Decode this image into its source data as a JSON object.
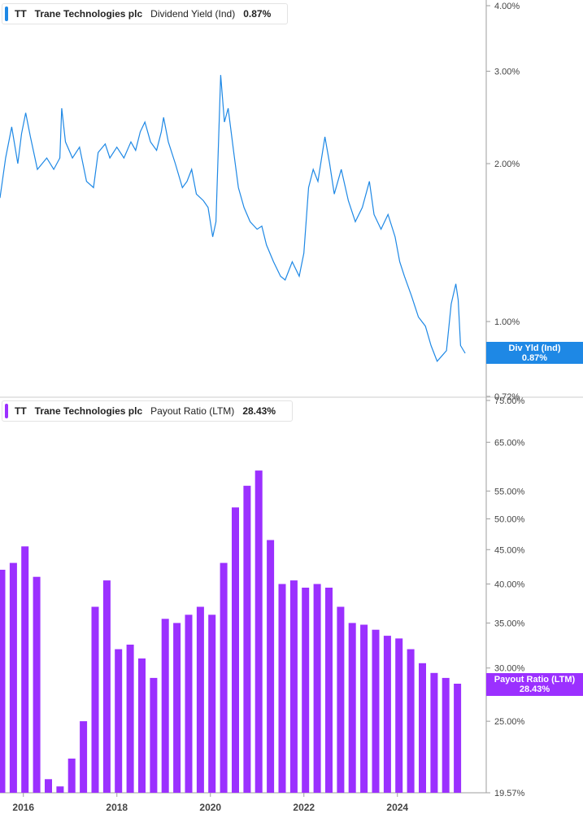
{
  "colors": {
    "yield": "#1e88e5",
    "payout": "#9b30ff",
    "axis": "#9e9e9e",
    "grid_text": "#444444"
  },
  "top_legend": {
    "ticker": "TT",
    "company": "Trane Technologies plc",
    "metric": "Dividend Yield (Ind)",
    "value": "0.87%"
  },
  "bottom_legend": {
    "ticker": "TT",
    "company": "Payout Ratio (LTM)",
    "company_name": "Trane Technologies plc",
    "value": "28.43%"
  },
  "top_tag": {
    "label": "Div Yld (Ind)",
    "value": "0.87%"
  },
  "bottom_tag": {
    "label": "Payout Ratio (LTM)",
    "value": "28.43%"
  },
  "chart_data": [
    {
      "type": "line",
      "series": [
        {
          "name": "Dividend Yield (Ind)",
          "points": [
            [
              2015.5,
              1.72
            ],
            [
              2015.62,
              2.05
            ],
            [
              2015.75,
              2.35
            ],
            [
              2015.88,
              2.0
            ],
            [
              2015.96,
              2.28
            ],
            [
              2016.05,
              2.5
            ],
            [
              2016.15,
              2.25
            ],
            [
              2016.3,
              1.95
            ],
            [
              2016.5,
              2.05
            ],
            [
              2016.65,
              1.95
            ],
            [
              2016.78,
              2.05
            ],
            [
              2016.82,
              2.55
            ],
            [
              2016.9,
              2.2
            ],
            [
              2017.05,
              2.05
            ],
            [
              2017.2,
              2.15
            ],
            [
              2017.35,
              1.85
            ],
            [
              2017.5,
              1.8
            ],
            [
              2017.6,
              2.1
            ],
            [
              2017.75,
              2.18
            ],
            [
              2017.85,
              2.05
            ],
            [
              2018.0,
              2.15
            ],
            [
              2018.15,
              2.05
            ],
            [
              2018.3,
              2.2
            ],
            [
              2018.4,
              2.12
            ],
            [
              2018.5,
              2.3
            ],
            [
              2018.6,
              2.4
            ],
            [
              2018.72,
              2.2
            ],
            [
              2018.85,
              2.12
            ],
            [
              2018.95,
              2.3
            ],
            [
              2019.0,
              2.45
            ],
            [
              2019.1,
              2.2
            ],
            [
              2019.25,
              2.0
            ],
            [
              2019.4,
              1.8
            ],
            [
              2019.5,
              1.85
            ],
            [
              2019.6,
              1.95
            ],
            [
              2019.7,
              1.75
            ],
            [
              2019.85,
              1.7
            ],
            [
              2019.95,
              1.65
            ],
            [
              2020.05,
              1.45
            ],
            [
              2020.12,
              1.55
            ],
            [
              2020.22,
              2.95
            ],
            [
              2020.3,
              2.4
            ],
            [
              2020.38,
              2.55
            ],
            [
              2020.5,
              2.1
            ],
            [
              2020.6,
              1.8
            ],
            [
              2020.72,
              1.65
            ],
            [
              2020.85,
              1.55
            ],
            [
              2021.0,
              1.5
            ],
            [
              2021.1,
              1.52
            ],
            [
              2021.2,
              1.4
            ],
            [
              2021.35,
              1.3
            ],
            [
              2021.5,
              1.22
            ],
            [
              2021.6,
              1.2
            ],
            [
              2021.75,
              1.3
            ],
            [
              2021.9,
              1.22
            ],
            [
              2022.0,
              1.35
            ],
            [
              2022.1,
              1.8
            ],
            [
              2022.2,
              1.95
            ],
            [
              2022.3,
              1.85
            ],
            [
              2022.45,
              2.25
            ],
            [
              2022.55,
              2.0
            ],
            [
              2022.65,
              1.75
            ],
            [
              2022.8,
              1.95
            ],
            [
              2022.95,
              1.7
            ],
            [
              2023.1,
              1.55
            ],
            [
              2023.25,
              1.65
            ],
            [
              2023.4,
              1.85
            ],
            [
              2023.5,
              1.6
            ],
            [
              2023.65,
              1.5
            ],
            [
              2023.8,
              1.6
            ],
            [
              2023.95,
              1.45
            ],
            [
              2024.05,
              1.3
            ],
            [
              2024.15,
              1.22
            ],
            [
              2024.3,
              1.12
            ],
            [
              2024.45,
              1.02
            ],
            [
              2024.6,
              0.98
            ],
            [
              2024.72,
              0.9
            ],
            [
              2024.85,
              0.84
            ],
            [
              2024.95,
              0.86
            ],
            [
              2025.05,
              0.88
            ],
            [
              2025.15,
              1.08
            ],
            [
              2025.25,
              1.18
            ],
            [
              2025.3,
              1.1
            ],
            [
              2025.35,
              0.9
            ],
            [
              2025.45,
              0.87
            ]
          ]
        }
      ],
      "y_scale": "log",
      "ylim": [
        0.72,
        4.0
      ],
      "ytick_labels": [
        {
          "value": 4.0,
          "label": "4.00%"
        },
        {
          "value": 3.0,
          "label": "3.00%"
        },
        {
          "value": 2.0,
          "label": "2.00%"
        },
        {
          "value": 1.0,
          "label": "1.00%"
        },
        {
          "value": 0.87,
          "label": "0.87%"
        },
        {
          "value": 0.72,
          "label": "0.72%"
        }
      ],
      "xlim": [
        2015.5,
        2025.9
      ]
    },
    {
      "type": "bar",
      "series": [
        {
          "name": "Payout Ratio (LTM)",
          "points": [
            [
              2015.5,
              42.0
            ],
            [
              2015.75,
              43.0
            ],
            [
              2016.0,
              45.5
            ],
            [
              2016.25,
              41.0
            ],
            [
              2016.5,
              20.5
            ],
            [
              2016.75,
              20.0
            ],
            [
              2017.0,
              22.0
            ],
            [
              2017.25,
              25.0
            ],
            [
              2017.5,
              37.0
            ],
            [
              2017.75,
              40.5
            ],
            [
              2018.0,
              32.0
            ],
            [
              2018.25,
              32.5
            ],
            [
              2018.5,
              31.0
            ],
            [
              2018.75,
              29.0
            ],
            [
              2019.0,
              35.5
            ],
            [
              2019.25,
              35.0
            ],
            [
              2019.5,
              36.0
            ],
            [
              2019.75,
              37.0
            ],
            [
              2020.0,
              36.0
            ],
            [
              2020.25,
              43.0
            ],
            [
              2020.5,
              52.0
            ],
            [
              2020.75,
              56.0
            ],
            [
              2021.0,
              59.0
            ],
            [
              2021.25,
              46.5
            ],
            [
              2021.5,
              40.0
            ],
            [
              2021.75,
              40.5
            ],
            [
              2022.0,
              39.5
            ],
            [
              2022.25,
              40.0
            ],
            [
              2022.5,
              39.5
            ],
            [
              2022.75,
              37.0
            ],
            [
              2023.0,
              35.0
            ],
            [
              2023.25,
              34.8
            ],
            [
              2023.5,
              34.2
            ],
            [
              2023.75,
              33.5
            ],
            [
              2024.0,
              33.2
            ],
            [
              2024.25,
              32.0
            ],
            [
              2024.5,
              30.5
            ],
            [
              2024.75,
              29.5
            ],
            [
              2025.0,
              29.0
            ],
            [
              2025.25,
              28.43
            ]
          ]
        }
      ],
      "y_scale": "log",
      "ylim": [
        19.57,
        75.0
      ],
      "ytick_labels": [
        {
          "value": 75,
          "label": "75.00%"
        },
        {
          "value": 65,
          "label": "65.00%"
        },
        {
          "value": 55,
          "label": "55.00%"
        },
        {
          "value": 50,
          "label": "50.00%"
        },
        {
          "value": 45,
          "label": "45.00%"
        },
        {
          "value": 40,
          "label": "40.00%"
        },
        {
          "value": 35,
          "label": "35.00%"
        },
        {
          "value": 30,
          "label": "30.00%"
        },
        {
          "value": 25,
          "label": "25.00%"
        },
        {
          "value": 19.57,
          "label": "19.57%"
        }
      ],
      "xlim": [
        2015.5,
        2025.9
      ],
      "xtick_labels": [
        {
          "value": 2016,
          "label": "2016"
        },
        {
          "value": 2018,
          "label": "2018"
        },
        {
          "value": 2020,
          "label": "2020"
        },
        {
          "value": 2022,
          "label": "2022"
        },
        {
          "value": 2024,
          "label": "2024"
        }
      ]
    }
  ]
}
